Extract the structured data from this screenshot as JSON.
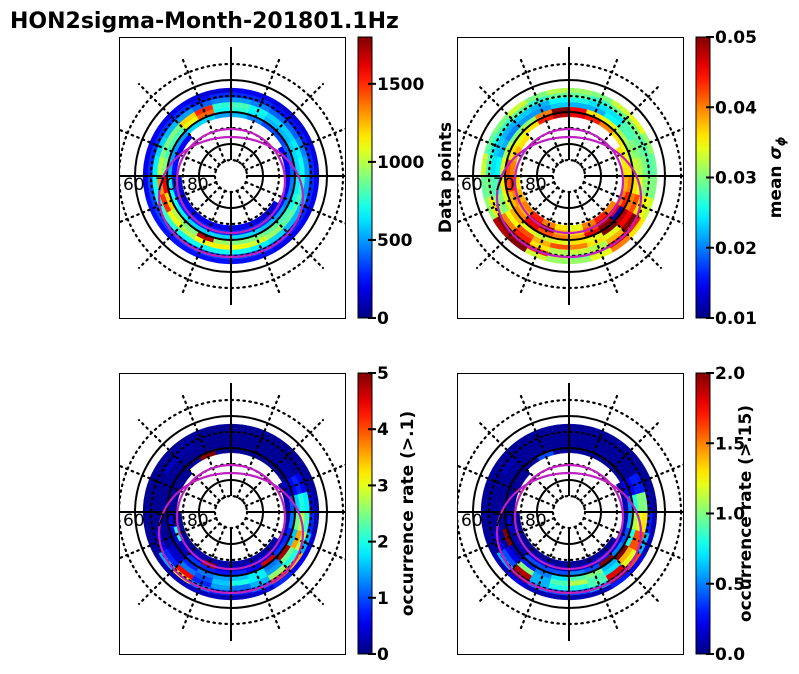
{
  "figure": {
    "title": "HON2sigma-Month-201801.1Hz"
  },
  "chart_data": {
    "type": "heatmap",
    "projection": "polar (MLT / MLAT), noon at top, midnight at bottom",
    "title": "HON2sigma-Month-201801.1Hz",
    "colormap": "jet",
    "mlat_ring_edges": [
      62.5,
      64,
      65.5,
      67,
      68.5,
      70,
      71.5,
      73,
      74.5
    ],
    "mlt_bins": 24,
    "grid": {
      "solid_circles_mlat": [
        60,
        70,
        80
      ],
      "dotted_circles_mlat": [
        55,
        65,
        75,
        85
      ],
      "radial_lines_deg": 22.5,
      "lat_labels": [
        "60",
        "70",
        "80"
      ],
      "reference_ovals": 2
    },
    "panels": [
      {
        "id": "data-points",
        "colorbar_label": "Data points",
        "colorbar_label_side": "right",
        "vmin": 0,
        "vmax": 1800,
        "ticks": [
          0,
          500,
          1000,
          1500
        ],
        "tick_labels": [
          "0",
          "500",
          "1000",
          "1500"
        ],
        "rows": [
          [
            250,
            250,
            200,
            200,
            200,
            200,
            180,
            180,
            150,
            150,
            200,
            200,
            150,
            150,
            200,
            200,
            200,
            200,
            200,
            250,
            250,
            250,
            250,
            250
          ],
          [
            350,
            350,
            300,
            300,
            300,
            300,
            300,
            280,
            250,
            250,
            300,
            300,
            300,
            250,
            300,
            300,
            300,
            300,
            350,
            350,
            350,
            350,
            350,
            350
          ],
          [
            700,
            650,
            600,
            550,
            550,
            500,
            500,
            450,
            400,
            400,
            450,
            500,
            450,
            400,
            500,
            550,
            600,
            650,
            700,
            750,
            750,
            700,
            700,
            700
          ],
          [
            1100,
            1050,
            950,
            850,
            800,
            750,
            700,
            650,
            600,
            600,
            700,
            800,
            750,
            1500,
            1200,
            900,
            900,
            1000,
            1300,
            1500,
            1100,
            1000,
            1100,
            1150
          ],
          [
            900,
            900,
            850,
            800,
            700,
            650,
            600,
            600,
            550,
            550,
            650,
            750,
            700,
            1400,
            1100,
            800,
            800,
            900,
            1600,
            1200,
            1000,
            900,
            1700,
            950
          ],
          [
            600,
            600,
            550,
            500,
            450,
            450,
            400,
            400,
            350,
            350,
            450,
            550,
            500,
            600,
            600,
            500,
            500,
            550,
            650,
            700,
            650,
            600,
            600,
            600
          ],
          [
            300,
            300,
            300,
            250,
            250,
            200,
            200,
            200,
            null,
            null,
            null,
            null,
            null,
            null,
            null,
            200,
            200,
            250,
            300,
            300,
            300,
            300,
            300,
            300
          ],
          [
            200,
            200,
            150,
            150,
            null,
            null,
            null,
            null,
            null,
            null,
            null,
            null,
            null,
            null,
            null,
            null,
            null,
            null,
            150,
            150,
            200,
            200,
            200,
            200
          ]
        ]
      },
      {
        "id": "mean-sigma-phi",
        "colorbar_label": "mean σ_φ",
        "colorbar_label_side": "right",
        "vmin": 0.01,
        "vmax": 0.05,
        "ticks": [
          0.01,
          0.02,
          0.03,
          0.04,
          0.05
        ],
        "tick_labels": [
          "0.01",
          "0.02",
          "0.03",
          "0.04",
          "0.05"
        ],
        "rows": [
          [
            0.031,
            0.034,
            0.04,
            0.036,
            0.033,
            0.03,
            0.029,
            0.031,
            0.034,
            0.033,
            0.03,
            0.031,
            0.032,
            0.03,
            0.033,
            0.03,
            0.029,
            0.033,
            0.029,
            0.031,
            0.048,
            0.05,
            0.033,
            0.031
          ],
          [
            0.03,
            0.033,
            0.046,
            0.044,
            0.035,
            0.03,
            0.028,
            0.028,
            0.03,
            0.029,
            0.027,
            0.029,
            0.029,
            0.027,
            0.029,
            0.027,
            0.026,
            0.028,
            0.03,
            0.036,
            0.05,
            0.049,
            0.044,
            0.032
          ],
          [
            0.033,
            0.032,
            0.038,
            0.05,
            0.036,
            0.031,
            0.03,
            0.029,
            0.028,
            0.024,
            0.024,
            0.026,
            0.025,
            0.022,
            0.023,
            0.022,
            0.023,
            0.024,
            0.028,
            0.031,
            0.04,
            0.044,
            0.036,
            0.032
          ],
          [
            0.04,
            0.036,
            0.034,
            0.045,
            0.042,
            0.034,
            0.032,
            0.03,
            0.028,
            0.025,
            0.022,
            0.022,
            0.023,
            0.021,
            0.021,
            0.02,
            0.022,
            0.025,
            0.028,
            0.03,
            0.035,
            0.042,
            0.038,
            0.042
          ],
          [
            0.036,
            0.034,
            0.05,
            0.048,
            0.04,
            0.036,
            0.033,
            0.031,
            0.032,
            0.034,
            0.036,
            0.045,
            0.05,
            0.04,
            0.031,
            0.03,
            0.032,
            0.034,
            0.036,
            0.034,
            0.038,
            0.034,
            0.033,
            0.034
          ],
          [
            0.038,
            0.046,
            0.05,
            0.012,
            0.044,
            0.04,
            0.036,
            0.034,
            0.036,
            0.04,
            0.044,
            0.046,
            0.048,
            0.044,
            0.036,
            0.034,
            0.036,
            0.042,
            0.042,
            0.038,
            0.04,
            0.046,
            0.042,
            0.04
          ],
          [
            0.036,
            0.042,
            0.048,
            0.046,
            0.04,
            0.038,
            0.036,
            0.036,
            null,
            null,
            null,
            null,
            null,
            null,
            null,
            0.036,
            0.038,
            0.04,
            0.044,
            0.04,
            0.038,
            0.046,
            0.05,
            0.038
          ],
          [
            0.034,
            0.04,
            0.044,
            0.04,
            null,
            null,
            null,
            null,
            null,
            null,
            null,
            null,
            null,
            null,
            null,
            null,
            null,
            null,
            0.036,
            0.038,
            0.04,
            0.044,
            0.04,
            0.036
          ]
        ]
      },
      {
        "id": "occurrence-rate-0.1",
        "colorbar_label": "occurrence rate (>.1)",
        "colorbar_label_side": "right",
        "vmin": 0,
        "vmax": 5,
        "ticks": [
          0,
          1,
          2,
          3,
          4,
          5
        ],
        "tick_labels": [
          "0",
          "1",
          "2",
          "3",
          "4",
          "5"
        ],
        "rows": [
          [
            0.3,
            0.4,
            0.8,
            0.6,
            0.4,
            0.2,
            0.1,
            0.1,
            0.1,
            0.1,
            0.1,
            0.1,
            0.1,
            0.1,
            0.1,
            0.1,
            0.1,
            0.1,
            0.1,
            0.1,
            0.2,
            0.3,
            0.3,
            0.3
          ],
          [
            0.8,
            1.2,
            4.0,
            3.5,
            1.5,
            0.8,
            0.4,
            0.2,
            0.1,
            0.1,
            0.1,
            0.1,
            0.1,
            0.1,
            0.2,
            0.1,
            0.1,
            0.1,
            0.1,
            0.2,
            1.5,
            3.2,
            1.2,
            0.8
          ],
          [
            1.2,
            1.5,
            2.6,
            2.0,
            2.8,
            2.2,
            1.8,
            0.6,
            0.1,
            0.1,
            0.1,
            0.1,
            0.1,
            0.1,
            0.2,
            0.3,
            0.1,
            0.1,
            0.1,
            0.5,
            0.8,
            4.4,
            0.8,
            1.4
          ],
          [
            2.0,
            1.8,
            1.4,
            2.4,
            3.6,
            2.8,
            2.0,
            0.8,
            0.2,
            0.1,
            0.1,
            0.1,
            0.1,
            0.1,
            0.1,
            0.1,
            0.1,
            0.1,
            0.1,
            0.1,
            0.4,
            1.2,
            1.0,
            1.6
          ],
          [
            1.6,
            1.8,
            1.2,
            4.8,
            1.6,
            2.4,
            1.6,
            0.6,
            0.2,
            0.1,
            0.1,
            0.1,
            0.1,
            0.1,
            0.1,
            0.1,
            0.1,
            0.1,
            0.1,
            0.1,
            0.3,
            0.8,
            1.2,
            1.4
          ],
          [
            0.8,
            0.6,
            4.6,
            0.9,
            0.8,
            1.2,
            1.0,
            0.4,
            0.1,
            0.1,
            0.1,
            0.1,
            0.1,
            5.0,
            0.1,
            0.1,
            0.1,
            0.1,
            0.6,
            0.4,
            0.3,
            0.9,
            0.8,
            0.7
          ],
          [
            0.3,
            0.4,
            0.6,
            0.4,
            0.3,
            0.2,
            0.2,
            0.1,
            null,
            null,
            null,
            null,
            null,
            null,
            null,
            0.1,
            0.1,
            0.1,
            0.2,
            2.0,
            0.3,
            0.4,
            4.8,
            0.3
          ],
          [
            0.2,
            0.2,
            0.2,
            0.2,
            null,
            null,
            null,
            null,
            null,
            null,
            null,
            null,
            null,
            null,
            null,
            null,
            null,
            null,
            0.1,
            0.1,
            0.1,
            0.2,
            0.2,
            0.2
          ]
        ]
      },
      {
        "id": "occurrence-rate-0.15",
        "colorbar_label": "occurrence rate (>.15)",
        "colorbar_label_side": "right",
        "vmin": 0,
        "vmax": 2.0,
        "ticks": [
          0.0,
          0.5,
          1.0,
          1.5,
          2.0
        ],
        "tick_labels": [
          "0.0",
          "0.5",
          "1.0",
          "1.5",
          "2.0"
        ],
        "rows": [
          [
            0.1,
            0.1,
            0.3,
            0.2,
            0.1,
            0.1,
            0.05,
            0.05,
            0.05,
            0.05,
            0.05,
            0.05,
            0.05,
            0.05,
            0.05,
            0.05,
            0.05,
            0.05,
            0.05,
            0.05,
            0.1,
            0.2,
            0.1,
            0.1
          ],
          [
            0.4,
            0.6,
            2.0,
            1.6,
            0.6,
            0.3,
            0.1,
            0.05,
            0.05,
            0.05,
            0.05,
            0.05,
            0.05,
            0.05,
            0.05,
            0.05,
            0.05,
            0.05,
            0.05,
            0.1,
            0.6,
            2.0,
            0.5,
            0.4
          ],
          [
            0.8,
            0.9,
            1.8,
            1.2,
            1.6,
            1.3,
            1.0,
            0.3,
            0.05,
            0.05,
            0.05,
            0.05,
            0.05,
            0.05,
            0.05,
            0.1,
            0.05,
            0.05,
            0.05,
            0.2,
            0.4,
            1.9,
            0.6,
            0.8
          ],
          [
            1.1,
            0.9,
            0.7,
            1.4,
            1.6,
            1.2,
            1.0,
            0.3,
            0.05,
            0.05,
            0.05,
            0.05,
            0.05,
            0.05,
            0.05,
            0.05,
            0.05,
            0.05,
            0.05,
            0.05,
            0.2,
            1.0,
            0.6,
            0.9
          ],
          [
            0.9,
            1.0,
            0.6,
            2.0,
            0.8,
            1.1,
            0.8,
            0.2,
            0.05,
            0.05,
            0.05,
            0.05,
            0.05,
            0.05,
            0.05,
            0.05,
            0.05,
            0.05,
            0.05,
            2.0,
            0.1,
            0.3,
            0.5,
            0.7
          ],
          [
            0.5,
            0.4,
            2.0,
            0.5,
            0.4,
            0.6,
            0.5,
            0.2,
            0.05,
            0.05,
            0.05,
            0.05,
            0.05,
            0.4,
            0.05,
            0.05,
            0.05,
            0.05,
            0.2,
            0.1,
            0.1,
            0.4,
            0.4,
            0.4
          ],
          [
            0.1,
            0.2,
            0.3,
            0.2,
            0.1,
            0.1,
            0.1,
            0.05,
            null,
            null,
            null,
            null,
            null,
            null,
            null,
            0.05,
            0.05,
            0.05,
            0.1,
            0.1,
            0.1,
            0.2,
            0.2,
            0.1
          ],
          [
            0.05,
            0.05,
            0.05,
            0.05,
            null,
            null,
            null,
            null,
            null,
            null,
            null,
            null,
            null,
            null,
            null,
            null,
            null,
            null,
            0.05,
            0.05,
            0.05,
            0.05,
            0.05,
            0.05
          ]
        ]
      }
    ]
  }
}
